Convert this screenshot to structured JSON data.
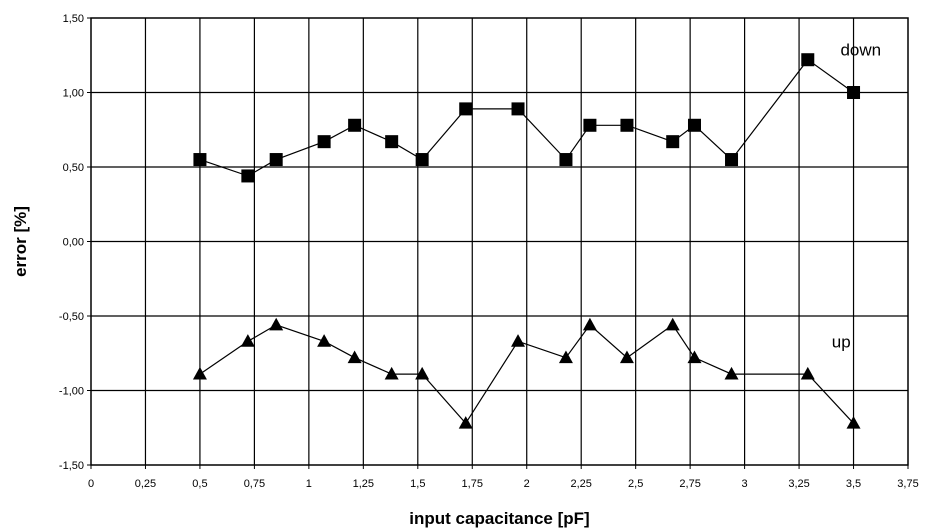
{
  "chart_data": {
    "type": "line",
    "xlabel": "input capacitance [pF]",
    "ylabel": "error [%]",
    "xlim": [
      0,
      3.75
    ],
    "ylim": [
      -1.5,
      1.5
    ],
    "x_ticks": [
      "0",
      "0,25",
      "0,5",
      "0,75",
      "1",
      "1,25",
      "1,5",
      "1,75",
      "2",
      "2,25",
      "2,5",
      "2,75",
      "3",
      "3,25",
      "3,5",
      "3,75"
    ],
    "y_ticks": [
      "1,50",
      "1,00",
      "0,50",
      "0,00",
      "-0,50",
      "-1,00",
      "-1,50"
    ],
    "grid": true,
    "series": [
      {
        "name": "down",
        "marker": "square",
        "x": [
          0.5,
          0.72,
          0.85,
          1.07,
          1.21,
          1.38,
          1.52,
          1.72,
          1.96,
          2.18,
          2.29,
          2.46,
          2.67,
          2.77,
          2.94,
          3.29,
          3.5
        ],
        "y": [
          0.55,
          0.44,
          0.55,
          0.67,
          0.78,
          0.67,
          0.55,
          0.89,
          0.89,
          0.55,
          0.78,
          0.78,
          0.67,
          0.78,
          0.55,
          1.22,
          1.0
        ]
      },
      {
        "name": "up",
        "marker": "triangle",
        "x": [
          0.5,
          0.72,
          0.85,
          1.07,
          1.21,
          1.38,
          1.52,
          1.72,
          1.96,
          2.18,
          2.29,
          2.46,
          2.67,
          2.77,
          2.94,
          3.29,
          3.5
        ],
        "y": [
          -0.89,
          -0.67,
          -0.56,
          -0.67,
          -0.78,
          -0.89,
          -0.89,
          -1.22,
          -0.67,
          -0.78,
          -0.56,
          -0.78,
          -0.56,
          -0.78,
          -0.89,
          -0.89,
          -1.22
        ]
      }
    ]
  }
}
